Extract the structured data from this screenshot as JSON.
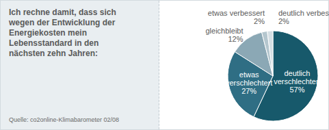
{
  "chart_data": {
    "type": "pie",
    "title": "Ich rechne damit, dass sich wegen der Entwicklung der Energiekosten mein Lebensstandard in den nächsten zehn Jahren:",
    "caption": "Quelle: co2online-Klimabarometer 02/08",
    "categories": [
      "deutlich verschlechtert",
      "etwas verschlechtert",
      "gleichbleibt",
      "etwas verbessert",
      "deutlich verbessert"
    ],
    "values": [
      57,
      27,
      12,
      2,
      2
    ],
    "value_labels": [
      "57%",
      "27%",
      "12%",
      "2%",
      "2%"
    ],
    "data_labels": true,
    "colors": [
      "#17596b",
      "#2f6e84",
      "#8ba8b5",
      "#b4c6ce",
      "#d5dfe4"
    ]
  }
}
